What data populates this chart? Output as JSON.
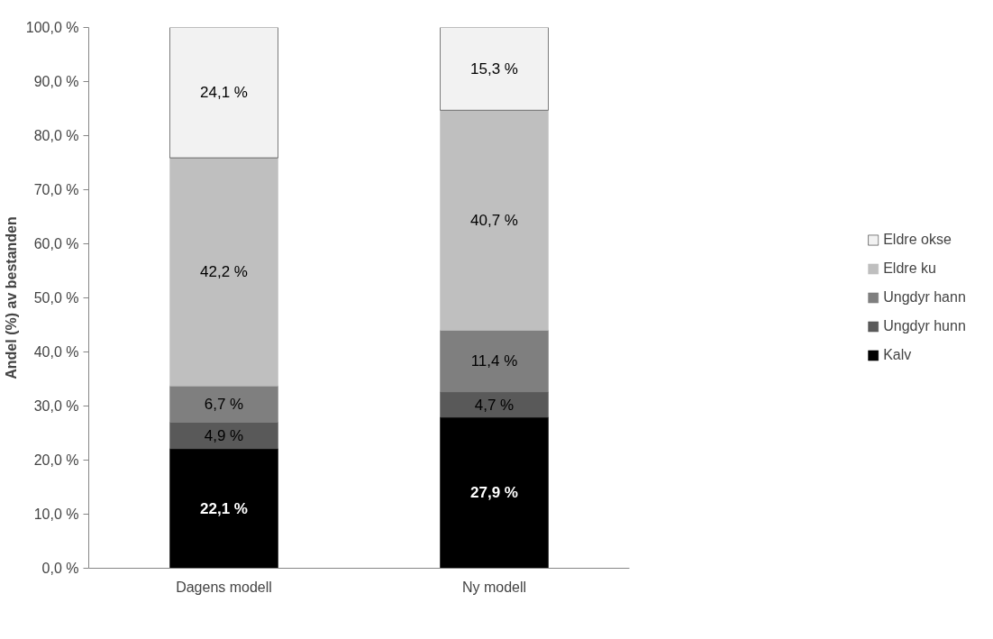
{
  "chart_data": {
    "type": "bar",
    "stacked": true,
    "ylabel": "Andel (%) av bestanden",
    "categories": [
      "Dagens modell",
      "Ny modell"
    ],
    "series": [
      {
        "name": "Kalv",
        "color": "#000000",
        "values": [
          22.1,
          27.9
        ],
        "value_labels": [
          "22,1 %",
          "27,9 %"
        ]
      },
      {
        "name": "Ungdyr hunn",
        "color": "#595959",
        "values": [
          4.9,
          4.7
        ],
        "value_labels": [
          "4,9 %",
          "4,7 %"
        ]
      },
      {
        "name": "Ungdyr hann",
        "color": "#7f7f7f",
        "values": [
          6.7,
          11.4
        ],
        "value_labels": [
          "6,7 %",
          "11,4 %"
        ]
      },
      {
        "name": "Eldre ku",
        "color": "#bfbfbf",
        "values": [
          42.2,
          40.7
        ],
        "value_labels": [
          "42,2 %",
          "40,7 %"
        ]
      },
      {
        "name": "Eldre okse",
        "color": "#f2f2f2",
        "values": [
          24.1,
          15.3
        ],
        "value_labels": [
          "24,1 %",
          "15,3 %"
        ]
      }
    ],
    "ylim": [
      0,
      100
    ],
    "yticks": [
      {
        "value": 0,
        "label": "0,0 %"
      },
      {
        "value": 10,
        "label": "10,0 %"
      },
      {
        "value": 20,
        "label": "20,0 %"
      },
      {
        "value": 30,
        "label": "30,0 %"
      },
      {
        "value": 40,
        "label": "40,0 %"
      },
      {
        "value": 50,
        "label": "50,0 %"
      },
      {
        "value": 60,
        "label": "60,0 %"
      },
      {
        "value": 70,
        "label": "70,0 %"
      },
      {
        "value": 80,
        "label": "80,0 %"
      },
      {
        "value": 90,
        "label": "90,0 %"
      },
      {
        "value": 100,
        "label": "100,0 %"
      }
    ],
    "legend": "right",
    "grid": false
  }
}
